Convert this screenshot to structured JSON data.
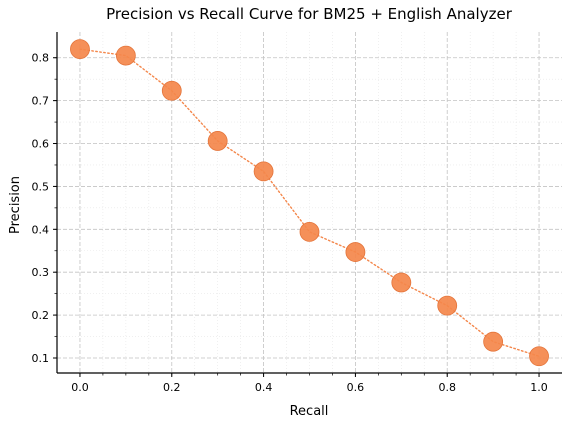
{
  "chart_data": {
    "type": "line",
    "title": "Precision vs Recall Curve for BM25 + English Analyzer",
    "xlabel": "Recall",
    "ylabel": "Precision",
    "xlim": [
      -0.05,
      1.05
    ],
    "ylim": [
      0.065,
      0.86
    ],
    "x_ticks": [
      0.0,
      0.2,
      0.4,
      0.6,
      0.8,
      1.0
    ],
    "x_tick_labels": [
      "0.0",
      "0.2",
      "0.4",
      "0.6",
      "0.8",
      "1.0"
    ],
    "y_ticks": [
      0.1,
      0.2,
      0.3,
      0.4,
      0.5,
      0.6,
      0.7,
      0.8
    ],
    "y_tick_labels": [
      "0.1",
      "0.2",
      "0.3",
      "0.4",
      "0.5",
      "0.6",
      "0.7",
      "0.8"
    ],
    "grid": true,
    "legend": "none",
    "series": [
      {
        "color": "#f4874b",
        "line_style": "dotted",
        "marker": "circle",
        "x": [
          0.0,
          0.1,
          0.2,
          0.3,
          0.4,
          0.5,
          0.6,
          0.7,
          0.8,
          0.9,
          1.0
        ],
        "y": [
          0.82,
          0.805,
          0.723,
          0.606,
          0.535,
          0.394,
          0.347,
          0.276,
          0.222,
          0.138,
          0.104
        ]
      }
    ]
  }
}
